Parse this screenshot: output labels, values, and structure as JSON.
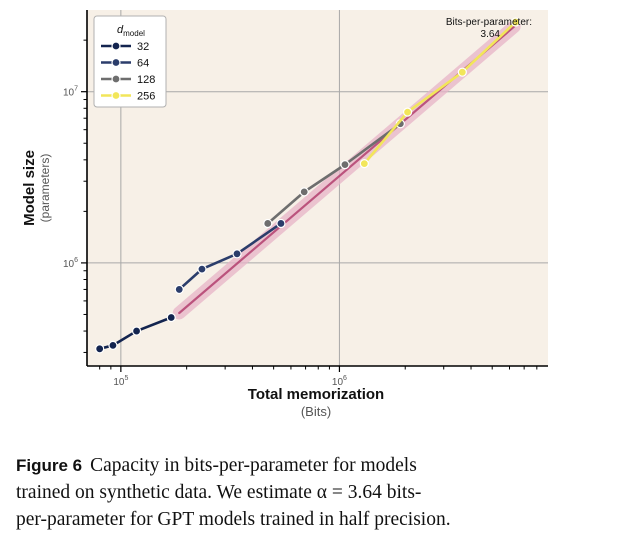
{
  "chart_data": {
    "type": "line",
    "xlabel": "Total memorization",
    "xlabel_sub": "(Bits)",
    "ylabel": "Model size",
    "ylabel_sub": "(parameters)",
    "x_scale": "log",
    "y_scale": "log",
    "xlim": [
      70000,
      9000000
    ],
    "ylim": [
      250000,
      30000000
    ],
    "x_ticks": [
      {
        "value": 100000,
        "base": "10",
        "exp": "5"
      },
      {
        "value": 1000000,
        "base": "10",
        "exp": "6"
      }
    ],
    "y_ticks": [
      {
        "value": 1000000,
        "base": "10",
        "exp": "6"
      },
      {
        "value": 10000000,
        "base": "10",
        "exp": "7"
      }
    ],
    "grid": true,
    "legend_title": "d",
    "legend_title_sub": "model",
    "legend_position": "top-left",
    "annotation": {
      "label": "Bits-per-parameter:",
      "value": "3.64"
    },
    "fit_line": {
      "x": [
        185000,
        6300000
      ],
      "y": [
        510000,
        24000000
      ]
    },
    "series": [
      {
        "name": "32",
        "color": "#13244f",
        "x": [
          80000,
          92000,
          118000,
          170000
        ],
        "y": [
          315000,
          330000,
          400000,
          480000
        ]
      },
      {
        "name": "64",
        "color": "#2b3d6b",
        "x": [
          185000,
          235000,
          340000,
          540000
        ],
        "y": [
          700000,
          920000,
          1130000,
          1700000
        ]
      },
      {
        "name": "128",
        "color": "#6e6e6e",
        "x": [
          470000,
          690000,
          1060000,
          1900000
        ],
        "y": [
          1700000,
          2600000,
          3750000,
          6500000
        ]
      },
      {
        "name": "256",
        "color": "#f2e65a",
        "x": [
          1300000,
          2050000,
          3650000,
          6400000
        ],
        "y": [
          3800000,
          7600000,
          13000000,
          25500000
        ]
      }
    ]
  },
  "caption": {
    "label": "Figure 6",
    "line1": "Capacity in bits-per-parameter for models",
    "line2": "trained on synthetic data. We estimate α = 3.64 bits-",
    "line3": "per-parameter for GPT models trained in half precision."
  }
}
